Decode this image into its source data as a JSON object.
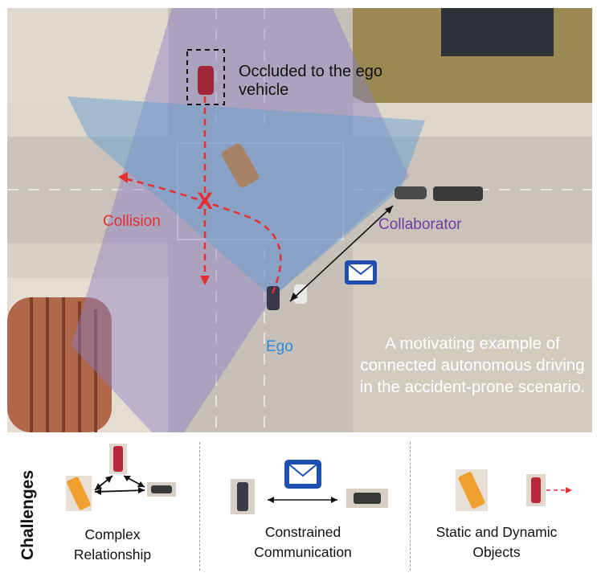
{
  "scene": {
    "occluded_label": "Occluded to the ego vehicle",
    "collision_label": "Collision",
    "collaborator_label": "Collaborator",
    "ego_label": "Ego",
    "caption": "A motivating example of connected autonomous driving in the accident-prone scenario.",
    "collision_marker": "X"
  },
  "challenges": {
    "label": "Challenges",
    "panels": [
      {
        "title": "Complex Relationship"
      },
      {
        "title": "Constrained Communication"
      },
      {
        "title": "Static and Dynamic Objects"
      }
    ]
  },
  "colors": {
    "collision": "#e53030",
    "collaborator": "#6e3ca0",
    "ego": "#2f8bd8",
    "ego_fov": "#8a7fc4",
    "collaborator_fov": "#6a9fd0",
    "message_icon": "#1e4fb0"
  },
  "icons": [
    "envelope-icon",
    "red-car-icon",
    "orange-truck-icon",
    "dark-car-icon"
  ]
}
